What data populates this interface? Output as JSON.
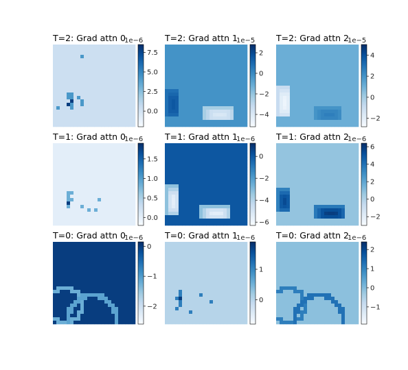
{
  "chart_data": [
    {
      "type": "heatmap",
      "title": "T=2: Grad attn 0",
      "colormap": "Blues",
      "background_level": 0.22,
      "colorbar": {
        "offset": "1e−6",
        "ticks": [
          "0.0",
          "2.5",
          "5.0",
          "7.5"
        ],
        "tick_values": [
          0,
          2.5,
          5,
          7.5
        ],
        "range": [
          -2.0,
          8.5
        ]
      },
      "features": [
        {
          "kind": "spots",
          "level": 0.6,
          "cells": [
            [
              3,
              8
            ],
            [
              14,
              4
            ],
            [
              14,
              5
            ],
            [
              15,
              4
            ],
            [
              15,
              5
            ],
            [
              16,
              5
            ],
            [
              17,
              5
            ],
            [
              18,
              5
            ],
            [
              17,
              4
            ],
            [
              18,
              1
            ],
            [
              16,
              8
            ],
            [
              17,
              8
            ],
            [
              15,
              7
            ]
          ]
        },
        {
          "kind": "spots",
          "level": 0.95,
          "cells": [
            [
              17,
              4
            ],
            [
              16,
              5
            ]
          ]
        }
      ]
    },
    {
      "type": "heatmap",
      "title": "T=2: Grad attn 1",
      "colormap": "Blues",
      "background_level": 0.62,
      "colorbar": {
        "offset": "1e−5",
        "ticks": [
          "−4",
          "−2",
          "0",
          "2"
        ],
        "tick_values": [
          -4,
          -2,
          0,
          2
        ],
        "range": [
          -5.2,
          2.8
        ]
      },
      "features": [
        {
          "kind": "arc",
          "level": 0.85,
          "ox": 0,
          "oy": 13,
          "w": 4,
          "h": 8
        },
        {
          "kind": "arc",
          "level": 0.15,
          "ox": 11,
          "oy": 18,
          "w": 9,
          "h": 4
        }
      ]
    },
    {
      "type": "heatmap",
      "title": "T=2: Grad attn 2",
      "colormap": "Blues",
      "background_level": 0.5,
      "colorbar": {
        "offset": "1e−5",
        "ticks": [
          "−2",
          "0",
          "2",
          "4"
        ],
        "tick_values": [
          -2,
          0,
          2,
          4
        ],
        "range": [
          -2.8,
          5.0
        ]
      },
      "features": [
        {
          "kind": "arc",
          "level": 0.05,
          "ox": 0,
          "oy": 12,
          "w": 4,
          "h": 9
        },
        {
          "kind": "arc",
          "level": 0.7,
          "ox": 11,
          "oy": 18,
          "w": 8,
          "h": 4
        }
      ]
    },
    {
      "type": "heatmap",
      "title": "T=1: Grad attn 0",
      "colormap": "Blues",
      "background_level": 0.1,
      "colorbar": {
        "offset": "1e−6",
        "ticks": [
          "0.0",
          "0.5",
          "1.0",
          "1.5"
        ],
        "tick_values": [
          0,
          0.5,
          1,
          1.5
        ],
        "range": [
          -0.2,
          1.9
        ]
      },
      "features": [
        {
          "kind": "spots",
          "level": 0.5,
          "cells": [
            [
              14,
              4
            ],
            [
              15,
              4
            ],
            [
              16,
              4
            ],
            [
              17,
              4
            ],
            [
              18,
              4
            ],
            [
              14,
              5
            ],
            [
              16,
              5
            ],
            [
              18,
              8
            ],
            [
              16,
              13
            ],
            [
              19,
              10
            ],
            [
              19,
              12
            ]
          ]
        },
        {
          "kind": "spots",
          "level": 0.95,
          "cells": [
            [
              17,
              4
            ]
          ]
        }
      ]
    },
    {
      "type": "heatmap",
      "title": "T=1: Grad attn 1",
      "colormap": "Blues",
      "background_level": 0.85,
      "colorbar": {
        "offset": "1e−6",
        "ticks": [
          "−6",
          "−4",
          "−2",
          "0"
        ],
        "tick_values": [
          -6,
          -4,
          -2,
          0
        ],
        "range": [
          -6.3,
          1.2
        ]
      },
      "features": [
        {
          "kind": "arc",
          "level": 0.1,
          "ox": 0,
          "oy": 12,
          "w": 4,
          "h": 9
        },
        {
          "kind": "arc",
          "level": 0.1,
          "ox": 10,
          "oy": 18,
          "w": 9,
          "h": 4
        }
      ]
    },
    {
      "type": "heatmap",
      "title": "T=1: Grad attn 2",
      "colormap": "Blues",
      "background_level": 0.4,
      "colorbar": {
        "offset": "1e−6",
        "ticks": [
          "−2",
          "0",
          "2",
          "4",
          "6"
        ],
        "tick_values": [
          -2,
          0,
          2,
          4,
          6
        ],
        "range": [
          -3.0,
          6.4
        ]
      },
      "features": [
        {
          "kind": "arc",
          "level": 0.9,
          "ox": 0,
          "oy": 13,
          "w": 4,
          "h": 7
        },
        {
          "kind": "arc",
          "level": 0.95,
          "ox": 11,
          "oy": 18,
          "w": 9,
          "h": 4
        }
      ]
    },
    {
      "type": "heatmap",
      "title": "T=0: Grad attn 0",
      "colormap": "Blues",
      "background_level": 0.95,
      "colorbar": {
        "offset": "1e−6",
        "ticks": [
          "−2",
          "−1",
          "0"
        ],
        "tick_values": [
          -2,
          -1,
          0
        ],
        "range": [
          -2.6,
          0.15
        ]
      },
      "features": [
        {
          "kind": "ring",
          "level": 0.5,
          "cx": 3,
          "cy": 18,
          "r": 5
        },
        {
          "kind": "ring",
          "level": 0.55,
          "cx": 11,
          "cy": 22,
          "r": 7
        }
      ]
    },
    {
      "type": "heatmap",
      "title": "T=0: Grad attn 1",
      "colormap": "Blues",
      "background_level": 0.3,
      "colorbar": {
        "offset": "1e−6",
        "ticks": [
          "0",
          "1"
        ],
        "tick_values": [
          0,
          1
        ],
        "range": [
          -0.8,
          1.9
        ]
      },
      "features": [
        {
          "kind": "spots",
          "level": 0.7,
          "cells": [
            [
              14,
              4
            ],
            [
              15,
              4
            ],
            [
              16,
              4
            ],
            [
              17,
              4
            ],
            [
              18,
              4
            ],
            [
              16,
              3
            ],
            [
              15,
              10
            ],
            [
              17,
              13
            ],
            [
              19,
              3
            ],
            [
              20,
              7
            ]
          ]
        },
        {
          "kind": "spots",
          "level": 0.95,
          "cells": [
            [
              16,
              4
            ]
          ]
        }
      ]
    },
    {
      "type": "heatmap",
      "title": "T=0: Grad attn 2",
      "colormap": "Blues",
      "background_level": 0.42,
      "colorbar": {
        "offset": "1e−6",
        "ticks": [
          "−1",
          "0",
          "1",
          "2"
        ],
        "tick_values": [
          -1,
          0,
          1,
          2
        ],
        "range": [
          -1.9,
          2.4
        ]
      },
      "features": [
        {
          "kind": "ring",
          "level": 0.7,
          "cx": 3,
          "cy": 18,
          "r": 5
        },
        {
          "kind": "ring",
          "level": 0.75,
          "cx": 12,
          "cy": 22,
          "r": 7
        }
      ]
    }
  ]
}
